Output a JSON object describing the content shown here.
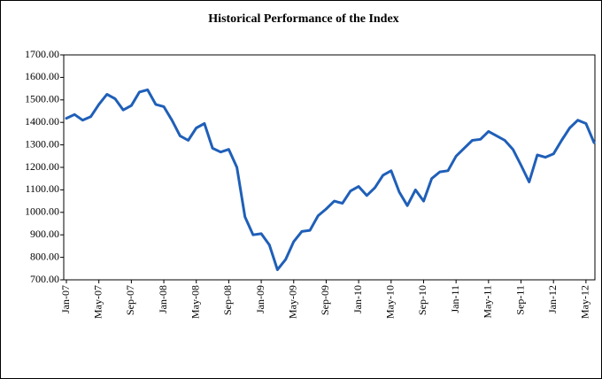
{
  "chart_data": {
    "type": "line",
    "title": "Historical Performance of the Index",
    "categories": [
      "Jan-07",
      null,
      null,
      null,
      "May-07",
      null,
      null,
      null,
      "Sep-07",
      null,
      null,
      null,
      "Jan-08",
      null,
      null,
      null,
      "May-08",
      null,
      null,
      null,
      "Sep-08",
      null,
      null,
      null,
      "Jan-09",
      null,
      null,
      null,
      "May-09",
      null,
      null,
      null,
      "Sep-09",
      null,
      null,
      null,
      "Jan-10",
      null,
      null,
      null,
      "May-10",
      null,
      null,
      null,
      "Sep-10",
      null,
      null,
      null,
      "Jan-11",
      null,
      null,
      null,
      "May-11",
      null,
      null,
      null,
      "Sep-11",
      null,
      null,
      null,
      "Jan-12",
      null,
      null,
      null,
      "May-12",
      null
    ],
    "series": [
      {
        "color": "#1f5fb8",
        "values": [
          1418,
          1435,
          1410,
          1425,
          1480,
          1525,
          1505,
          1455,
          1475,
          1535,
          1545,
          1480,
          1470,
          1410,
          1340,
          1320,
          1375,
          1395,
          1285,
          1268,
          1280,
          1200,
          980,
          900,
          905,
          855,
          745,
          790,
          870,
          915,
          920,
          985,
          1015,
          1050,
          1040,
          1095,
          1115,
          1075,
          1110,
          1165,
          1185,
          1090,
          1030,
          1100,
          1050,
          1150,
          1180,
          1185,
          1250,
          1285,
          1320,
          1325,
          1360,
          1340,
          1320,
          1280,
          1210,
          1135,
          1255,
          1245,
          1260,
          1320,
          1375,
          1410,
          1395,
          1310
        ]
      }
    ],
    "ylim": [
      700,
      1700
    ],
    "yticks": [
      {
        "value": 700,
        "label": "700.00"
      },
      {
        "value": 800,
        "label": "800.00"
      },
      {
        "value": 900,
        "label": "900.00"
      },
      {
        "value": 1000,
        "label": "1000.00"
      },
      {
        "value": 1100,
        "label": "1100.00"
      },
      {
        "value": 1200,
        "label": "1200.00"
      },
      {
        "value": 1300,
        "label": "1300.00"
      },
      {
        "value": 1400,
        "label": "1400.00"
      },
      {
        "value": 1500,
        "label": "1500.00"
      },
      {
        "value": 1600,
        "label": "1600.00"
      },
      {
        "value": 1700,
        "label": "1700.00"
      }
    ]
  }
}
